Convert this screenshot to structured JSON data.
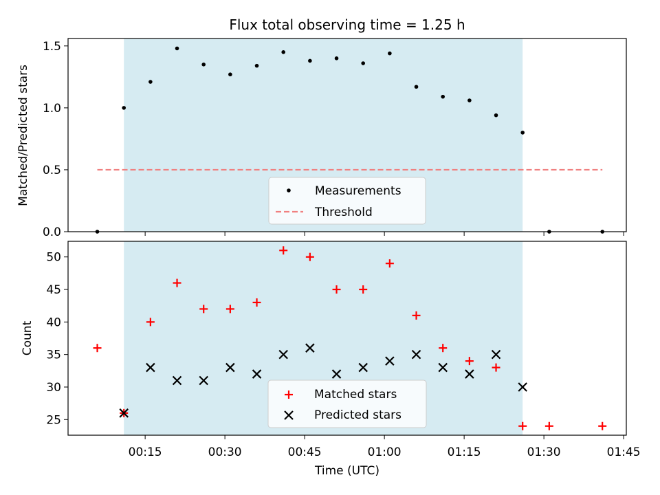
{
  "chart_data": [
    {
      "type": "scatter",
      "title": "Flux total observing time = 1.25 h",
      "xlabel": "",
      "ylabel": "Matched/Predicted stars",
      "ylim": [
        0,
        1.56
      ],
      "yticks": [
        "0.0",
        "0.5",
        "1.0",
        "1.5"
      ],
      "x_range": [
        "00:00:30",
        "01:45:30"
      ],
      "highlight_span": {
        "start": "00:11",
        "end": "01:26",
        "color": "#add8e6"
      },
      "legend_position": "lower center",
      "series": [
        {
          "name": "Measurements",
          "marker": "dot",
          "color": "#000000",
          "x": [
            "00:06",
            "00:11",
            "00:16",
            "00:21",
            "00:26",
            "00:31",
            "00:36",
            "00:41",
            "00:46",
            "00:51",
            "00:56",
            "01:01",
            "01:06",
            "01:11",
            "01:16",
            "01:21",
            "01:26",
            "01:31",
            "01:41"
          ],
          "y": [
            0.0,
            1.0,
            1.21,
            1.48,
            1.35,
            1.27,
            1.34,
            1.45,
            1.38,
            1.4,
            1.36,
            1.44,
            1.17,
            1.09,
            1.06,
            0.94,
            0.8,
            0.0,
            0.0
          ]
        },
        {
          "name": "Threshold",
          "style": "dashed",
          "color": "#f08080",
          "x": [
            "00:06",
            "01:41"
          ],
          "y": [
            0.5,
            0.5
          ]
        }
      ]
    },
    {
      "type": "scatter",
      "title": "",
      "xlabel": "Time (UTC)",
      "ylabel": "Count",
      "ylim": [
        22.6,
        52.4
      ],
      "yticks": [
        "25",
        "30",
        "35",
        "40",
        "45",
        "50"
      ],
      "xticks": [
        "00:15",
        "00:30",
        "00:45",
        "01:00",
        "01:15",
        "01:30",
        "01:45"
      ],
      "x_range": [
        "00:00:30",
        "01:45:30"
      ],
      "highlight_span": {
        "start": "00:11",
        "end": "01:26",
        "color": "#add8e6"
      },
      "legend_position": "lower center",
      "series": [
        {
          "name": "Matched stars",
          "marker": "plus",
          "color": "#ff0000",
          "x": [
            "00:06",
            "00:11",
            "00:16",
            "00:21",
            "00:26",
            "00:31",
            "00:36",
            "00:41",
            "00:46",
            "00:51",
            "00:56",
            "01:01",
            "01:06",
            "01:11",
            "01:16",
            "01:21",
            "01:26",
            "01:31",
            "01:41"
          ],
          "y": [
            36,
            26,
            40,
            46,
            42,
            42,
            43,
            51,
            50,
            45,
            45,
            49,
            41,
            36,
            34,
            33,
            24,
            24,
            24
          ]
        },
        {
          "name": "Predicted stars",
          "marker": "x",
          "color": "#000000",
          "x": [
            "00:11",
            "00:16",
            "00:21",
            "00:26",
            "00:31",
            "00:36",
            "00:41",
            "00:46",
            "00:51",
            "00:56",
            "01:01",
            "01:06",
            "01:11",
            "01:16",
            "01:21",
            "01:26"
          ],
          "y": [
            26,
            33,
            31,
            31,
            33,
            32,
            35,
            36,
            32,
            33,
            34,
            35,
            33,
            32,
            35,
            30
          ]
        }
      ]
    }
  ]
}
